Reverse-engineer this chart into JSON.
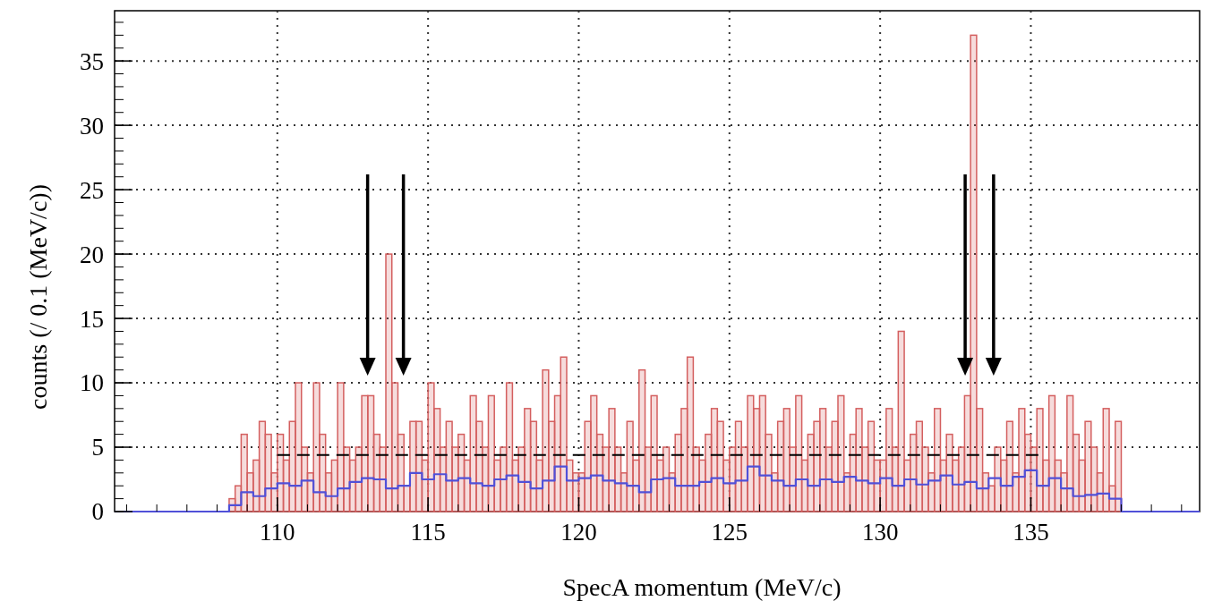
{
  "chart_data": {
    "type": "histogram",
    "xlabel": "SpecA momentum (MeV/c)",
    "ylabel": "counts (/ 0.1 (MeV/c))",
    "xlim": [
      104.6,
      140.6
    ],
    "ylim": [
      0,
      38.9
    ],
    "xticks": [
      110,
      115,
      120,
      125,
      130,
      135
    ],
    "yticks": [
      0,
      5,
      10,
      15,
      20,
      25,
      30,
      35
    ],
    "grid": true,
    "bins": [
      108.0,
      108.2,
      108.4,
      108.6,
      108.8,
      109.0,
      109.2,
      109.4,
      109.6,
      109.8,
      110.0,
      110.2,
      110.4,
      110.6,
      110.8,
      111.0,
      111.2,
      111.4,
      111.6,
      111.8,
      112.0,
      112.2,
      112.4,
      112.6,
      112.8,
      113.0,
      113.2,
      113.4,
      113.6,
      113.8,
      114.0,
      114.2,
      114.4,
      114.6,
      114.8,
      115.0,
      115.2,
      115.4,
      115.6,
      115.8,
      116.0,
      116.2,
      116.4,
      116.6,
      116.8,
      117.0,
      117.2,
      117.4,
      117.6,
      117.8,
      118.0,
      118.2,
      118.4,
      118.6,
      118.8,
      119.0,
      119.2,
      119.4,
      119.6,
      119.8,
      120.0,
      120.2,
      120.4,
      120.6,
      120.8,
      121.0,
      121.2,
      121.4,
      121.6,
      121.8,
      122.0,
      122.2,
      122.4,
      122.6,
      122.8,
      123.0,
      123.2,
      123.4,
      123.6,
      123.8,
      124.0,
      124.2,
      124.4,
      124.6,
      124.8,
      125.0,
      125.2,
      125.4,
      125.6,
      125.8,
      126.0,
      126.2,
      126.4,
      126.6,
      126.8,
      127.0,
      127.2,
      127.4,
      127.6,
      127.8,
      128.0,
      128.2,
      128.4,
      128.6,
      128.8,
      129.0,
      129.2,
      129.4,
      129.6,
      129.8,
      130.0,
      130.2,
      130.4,
      130.6,
      130.8,
      131.0,
      131.2,
      131.4,
      131.6,
      131.8,
      132.0,
      132.2,
      132.4,
      132.6,
      132.8,
      133.0,
      133.2,
      133.4,
      133.6,
      133.8,
      134.0,
      134.2,
      134.4,
      134.6,
      134.8,
      135.0,
      135.2,
      135.4,
      135.6,
      135.8,
      136.0,
      136.2,
      136.4,
      136.6,
      136.8,
      137.0,
      137.2,
      137.4,
      137.6,
      137.8,
      138.0
    ],
    "series": [
      {
        "color": "#d45f5f",
        "values": [
          0,
          0,
          1,
          2,
          6,
          3,
          4,
          7,
          6,
          3,
          6,
          4,
          7,
          10,
          5,
          3,
          10,
          6,
          3,
          4,
          10,
          5,
          4,
          5,
          9,
          9,
          6,
          5,
          20,
          10,
          6,
          2,
          7,
          7,
          4,
          10,
          8,
          5,
          7,
          5,
          6,
          4,
          9,
          7,
          5,
          9,
          4,
          5,
          10,
          4,
          5,
          8,
          7,
          4,
          11,
          7,
          9,
          12,
          4,
          3,
          3,
          7,
          9,
          6,
          5,
          8,
          5,
          3,
          7,
          4,
          11,
          5,
          9,
          4,
          5,
          3,
          6,
          8,
          12,
          5,
          4,
          6,
          8,
          7,
          4,
          5,
          7,
          5,
          9,
          8,
          9,
          6,
          3,
          7,
          8,
          5,
          9,
          4,
          6,
          7,
          8,
          5,
          7,
          9,
          3,
          6,
          8,
          5,
          7,
          4,
          4,
          8,
          5,
          14,
          4,
          6,
          7,
          5,
          3,
          8,
          4,
          6,
          4,
          5,
          9,
          37,
          8,
          3,
          2,
          5,
          4,
          7,
          3,
          8,
          6,
          5,
          8,
          4,
          9,
          4,
          3,
          9,
          6,
          4,
          7,
          5,
          3,
          8,
          2,
          7
        ]
      },
      {
        "type": "step",
        "color": "#5050d8",
        "x": [
          104.6,
          108.0,
          108.4,
          108.8,
          109.2,
          109.6,
          110.0,
          110.4,
          110.8,
          111.2,
          111.6,
          112.0,
          112.4,
          112.8,
          113.2,
          113.6,
          114.0,
          114.4,
          114.8,
          115.2,
          115.6,
          116.0,
          116.4,
          116.8,
          117.2,
          117.6,
          118.0,
          118.4,
          118.8,
          119.2,
          119.6,
          120.0,
          120.4,
          120.8,
          121.2,
          121.6,
          122.0,
          122.4,
          122.8,
          123.2,
          123.6,
          124.0,
          124.4,
          124.8,
          125.2,
          125.6,
          126.0,
          126.4,
          126.8,
          127.2,
          127.6,
          128.0,
          128.4,
          128.8,
          129.2,
          129.6,
          130.0,
          130.4,
          130.8,
          131.2,
          131.6,
          132.0,
          132.4,
          132.8,
          133.2,
          133.6,
          134.0,
          134.4,
          134.8,
          135.2,
          135.6,
          136.0,
          136.4,
          136.8,
          137.2,
          137.6,
          138.0,
          140.6
        ],
        "values": [
          0,
          0,
          0.5,
          1.5,
          1.2,
          1.8,
          2.2,
          2.0,
          2.4,
          1.5,
          1.2,
          1.8,
          2.3,
          2.6,
          2.5,
          1.8,
          2.0,
          3.0,
          2.5,
          2.9,
          2.4,
          2.6,
          2.2,
          2.0,
          2.5,
          2.8,
          2.3,
          1.8,
          2.4,
          3.5,
          2.4,
          2.6,
          2.8,
          2.4,
          2.2,
          2.0,
          1.5,
          2.5,
          2.6,
          2.0,
          2.0,
          2.3,
          2.6,
          2.2,
          2.4,
          3.5,
          2.8,
          2.4,
          2.0,
          2.5,
          2.0,
          2.5,
          2.3,
          2.7,
          2.4,
          2.2,
          2.6,
          2.0,
          2.5,
          2.1,
          2.4,
          2.8,
          2.1,
          2.3,
          1.8,
          2.6,
          2.0,
          2.7,
          3.2,
          2.0,
          2.6,
          1.8,
          1.2,
          1.3,
          1.4,
          1.0,
          0,
          0
        ]
      },
      {
        "type": "line",
        "color": "#000000",
        "line_style": "dashed",
        "x": [
          110,
          135.3
        ],
        "values": [
          4.4,
          4.4
        ]
      }
    ]
  }
}
